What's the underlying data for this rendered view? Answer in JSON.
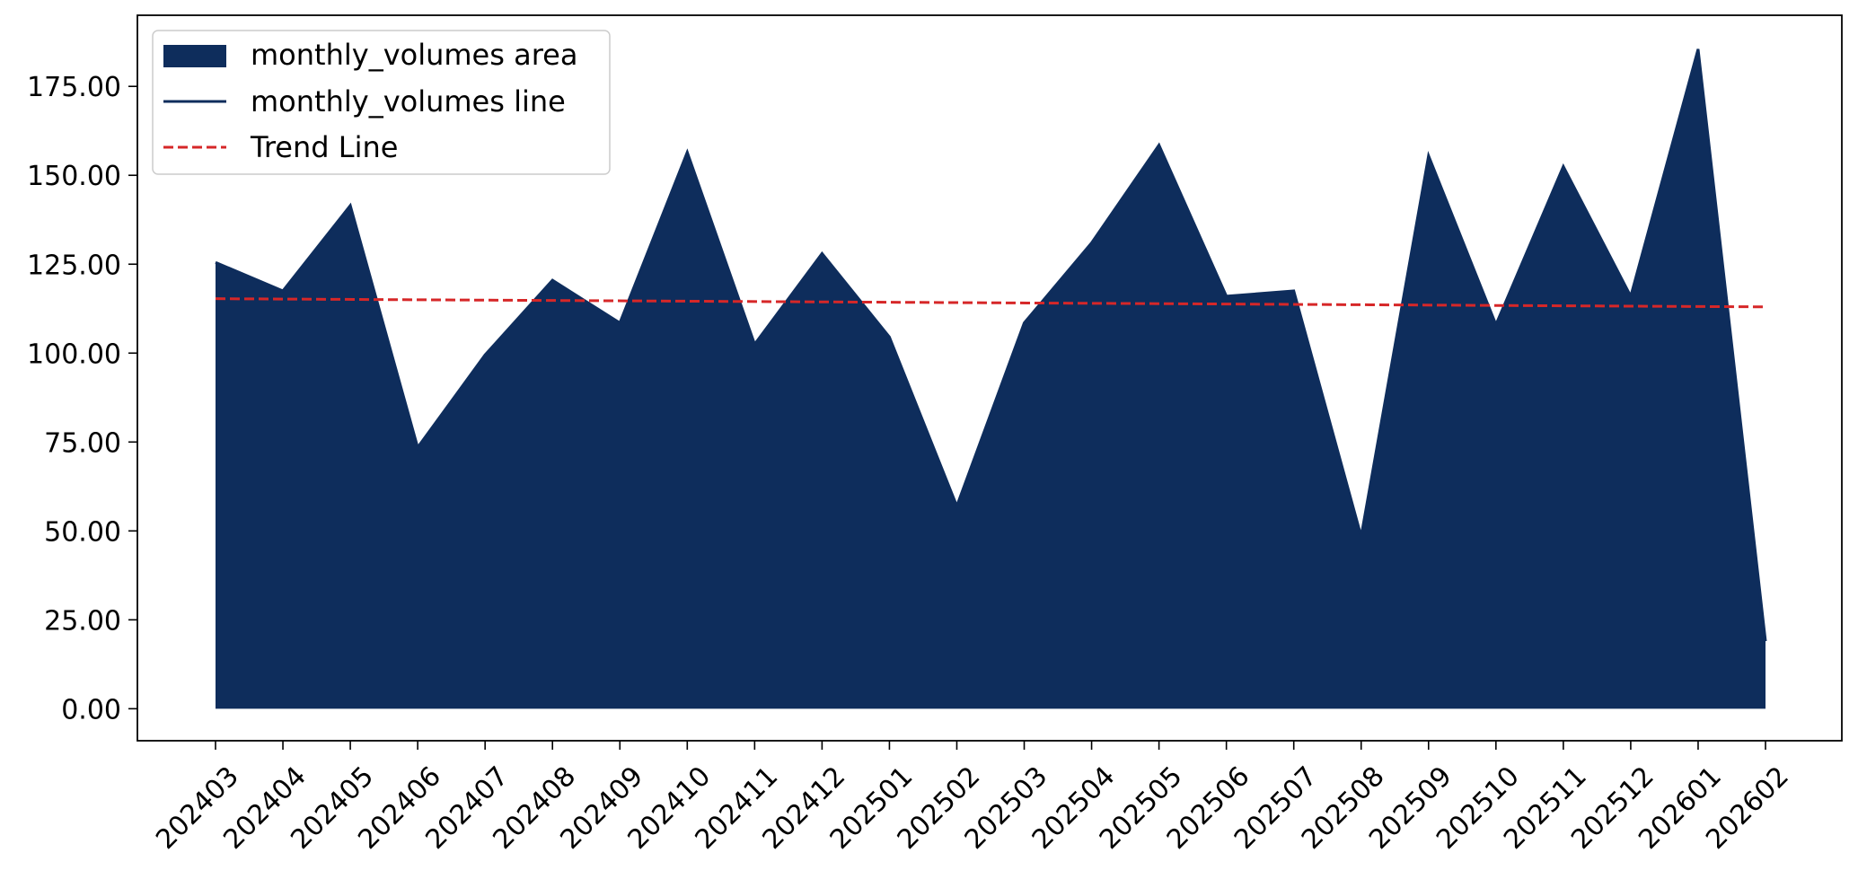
{
  "chart_data": {
    "type": "area",
    "title": "",
    "xlabel": "",
    "ylabel": "",
    "categories": [
      "202403",
      "202404",
      "202405",
      "202406",
      "202407",
      "202408",
      "202409",
      "202410",
      "202411",
      "202412",
      "202501",
      "202502",
      "202503",
      "202504",
      "202505",
      "202506",
      "202507",
      "202508",
      "202509",
      "202510",
      "202511",
      "202512",
      "202601",
      "202602"
    ],
    "series": [
      {
        "name": "monthly_volumes area",
        "kind": "area",
        "color": "#0e2d5c",
        "values": [
          125.5,
          117.5,
          141.5,
          73.5,
          99.5,
          120.5,
          108.5,
          156.5,
          102.5,
          128.0,
          104.5,
          57.0,
          108.5,
          131.0,
          158.5,
          116.0,
          117.5,
          48.5,
          155.5,
          108.0,
          152.5,
          116.0,
          185.5,
          19.0
        ]
      },
      {
        "name": "monthly_volumes line",
        "kind": "line",
        "color": "#0e2d5c",
        "values": [
          125.5,
          117.5,
          141.5,
          73.5,
          99.5,
          120.5,
          108.5,
          156.5,
          102.5,
          128.0,
          104.5,
          57.0,
          108.5,
          131.0,
          158.5,
          116.0,
          117.5,
          48.5,
          155.5,
          108.0,
          152.5,
          116.0,
          185.5,
          19.0
        ]
      },
      {
        "name": "Trend Line",
        "kind": "dashed-line",
        "color": "#d62728",
        "start": 115.3,
        "end": 113.0
      }
    ],
    "yticks": [
      "0.00",
      "25.00",
      "50.00",
      "75.00",
      "100.00",
      "125.00",
      "150.00",
      "175.00"
    ],
    "ylim": [
      -9,
      195
    ],
    "grid": false,
    "legend_position": "top-left"
  }
}
